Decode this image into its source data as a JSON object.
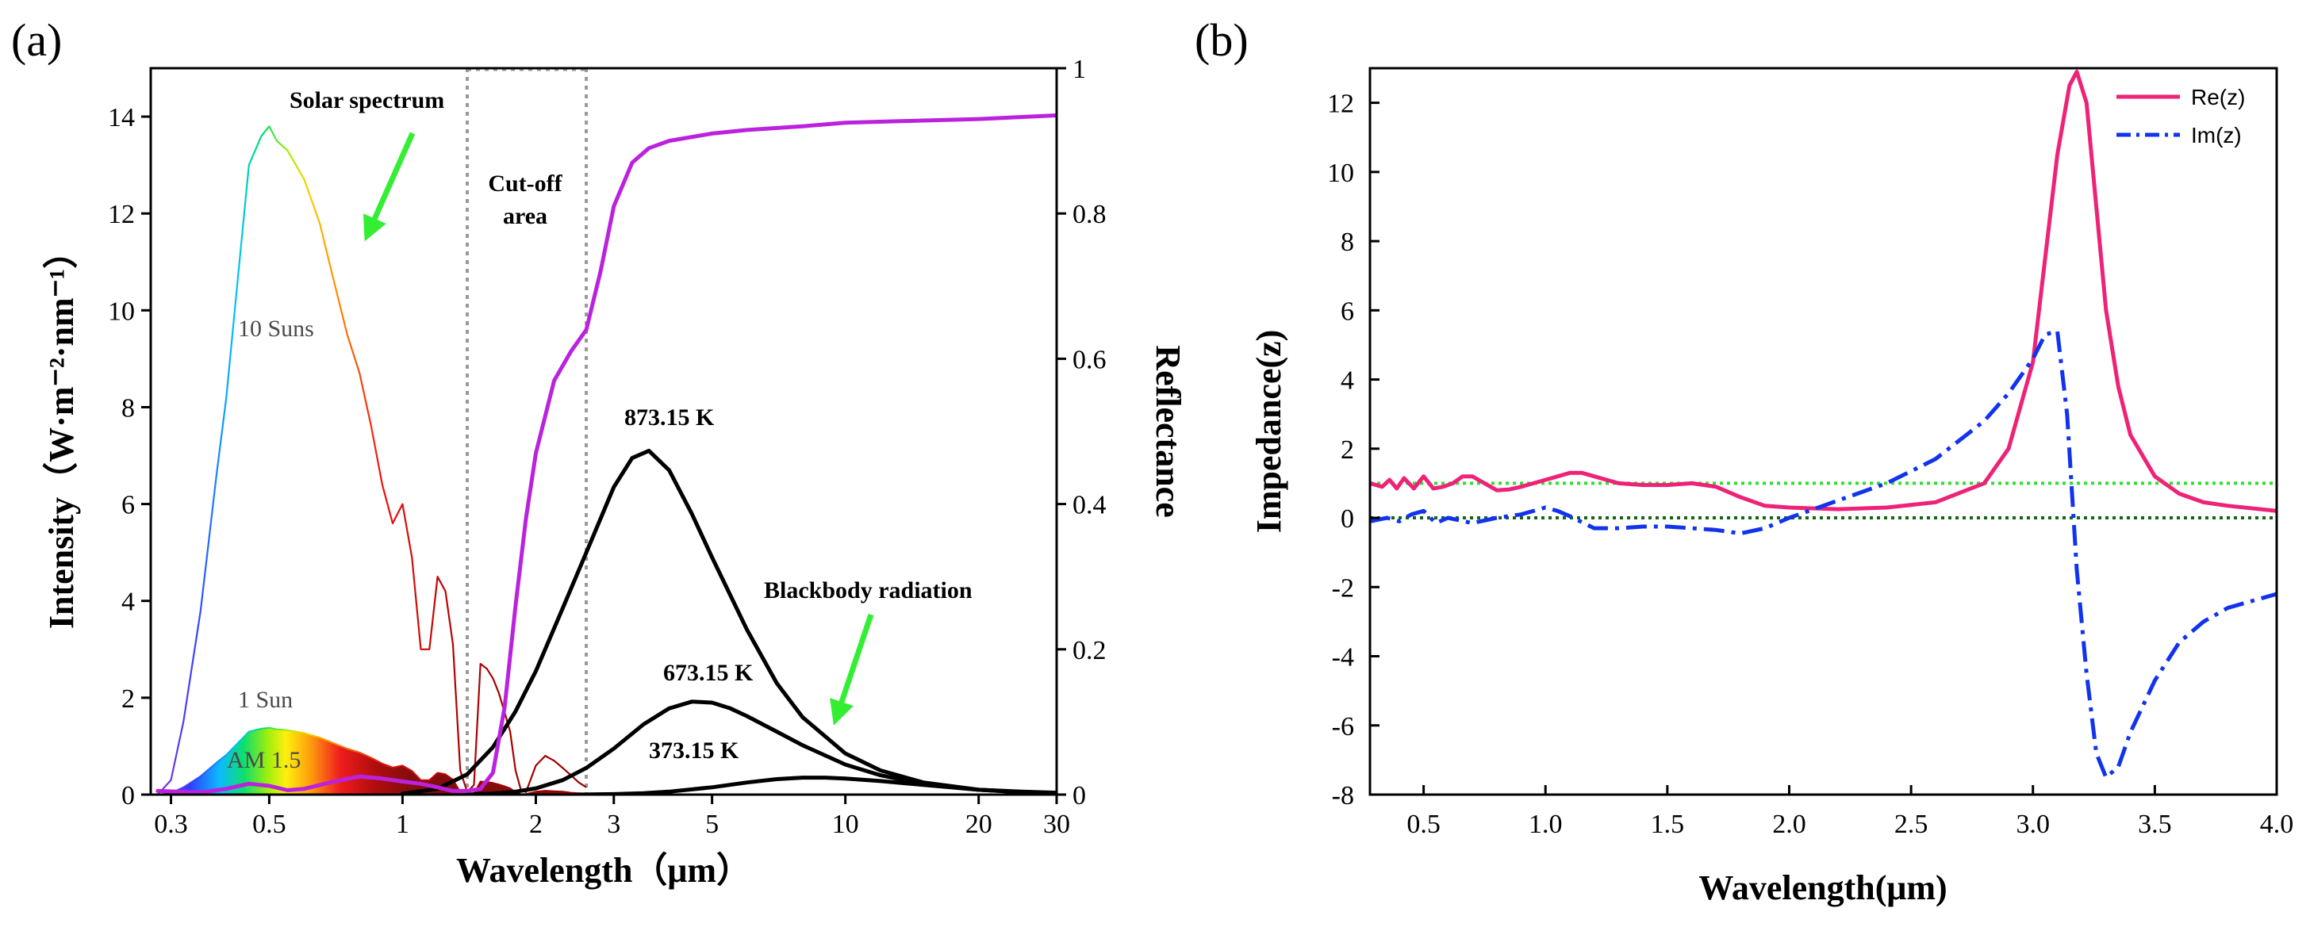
{
  "chart_data": [
    {
      "panel": "(a)",
      "type": "line",
      "xscale": "log",
      "xlabel": "Wavelength（μm）",
      "ylabel": "Intensity（W·m⁻²·nm⁻¹）",
      "ylabel2": "Reflectance",
      "xlim": [
        0.27,
        30
      ],
      "ylim": [
        0,
        15
      ],
      "ylim2": [
        0,
        1
      ],
      "xticks": [
        0.3,
        0.5,
        1,
        2,
        3,
        5,
        10,
        20,
        30
      ],
      "xtick_labels": [
        "0.3",
        "0.5",
        "1",
        "2",
        "3",
        "5",
        "10",
        "20",
        "30"
      ],
      "yticks": [
        0,
        2,
        4,
        6,
        8,
        10,
        12,
        14
      ],
      "yticks2": [
        0,
        0.2,
        0.4,
        0.6,
        0.8,
        1
      ],
      "ytick2_labels": [
        "0",
        "0.2",
        "0.4",
        "0.6",
        "0.8",
        "1"
      ],
      "cutoff_lines": [
        1.4,
        2.6
      ],
      "annotations": {
        "solar_spectrum": "Solar spectrum",
        "cutoff_line1": "Cut-off",
        "cutoff_line2": "area",
        "ten_suns": "10 Suns",
        "one_sun": "1 Sun",
        "am15": "AM 1.5",
        "blackbody": "Blackbody radiation",
        "t873": "873.15 K",
        "t673": "673.15 K",
        "t373": "373.15 K"
      },
      "arrow_color": "#33ee33",
      "series": [
        {
          "name": "10 Suns",
          "color": "spectral",
          "x": [
            0.28,
            0.3,
            0.32,
            0.35,
            0.38,
            0.4,
            0.42,
            0.45,
            0.48,
            0.5,
            0.52,
            0.55,
            0.6,
            0.65,
            0.7,
            0.75,
            0.8,
            0.85,
            0.9,
            0.95,
            1.0,
            1.05,
            1.1,
            1.15,
            1.2,
            1.25,
            1.3,
            1.35,
            1.4,
            1.45,
            1.5,
            1.55,
            1.6,
            1.65,
            1.7,
            1.75,
            1.8,
            1.85,
            1.9,
            2.0,
            2.1,
            2.2,
            2.3,
            2.4,
            2.5,
            2.6
          ],
          "y": [
            0,
            0.3,
            1.5,
            3.8,
            6.6,
            8.2,
            10.2,
            13.0,
            13.6,
            13.8,
            13.5,
            13.3,
            12.7,
            11.8,
            10.6,
            9.5,
            8.7,
            7.6,
            6.4,
            5.6,
            6.0,
            4.9,
            3.0,
            3.0,
            4.5,
            4.2,
            3.1,
            0.5,
            0.05,
            0.2,
            2.7,
            2.6,
            2.4,
            2.1,
            1.7,
            1.3,
            0.5,
            0.1,
            0.05,
            0.6,
            0.8,
            0.7,
            0.55,
            0.4,
            0.25,
            0.15
          ]
        },
        {
          "name": "AM 1.5 (1 Sun)",
          "color": "spectral",
          "x": [
            0.28,
            0.3,
            0.32,
            0.35,
            0.38,
            0.4,
            0.42,
            0.45,
            0.48,
            0.5,
            0.52,
            0.55,
            0.6,
            0.65,
            0.7,
            0.75,
            0.8,
            0.85,
            0.9,
            0.95,
            1.0,
            1.05,
            1.1,
            1.15,
            1.2,
            1.25,
            1.3,
            1.35,
            1.4,
            1.45,
            1.5,
            1.55,
            1.6,
            1.65,
            1.7,
            1.75,
            1.8,
            1.85,
            1.9,
            2.0,
            2.1,
            2.2,
            2.3,
            2.4,
            2.5,
            2.6
          ],
          "y": [
            0,
            0.03,
            0.15,
            0.38,
            0.66,
            0.82,
            1.02,
            1.3,
            1.36,
            1.38,
            1.35,
            1.33,
            1.27,
            1.18,
            1.06,
            0.95,
            0.87,
            0.76,
            0.64,
            0.56,
            0.6,
            0.49,
            0.3,
            0.3,
            0.45,
            0.42,
            0.31,
            0.05,
            0.01,
            0.02,
            0.27,
            0.26,
            0.24,
            0.21,
            0.17,
            0.13,
            0.05,
            0.01,
            0.01,
            0.06,
            0.08,
            0.07,
            0.06,
            0.04,
            0.03,
            0.02
          ]
        },
        {
          "name": "873.15 K",
          "color": "#000000",
          "x": [
            1.0,
            1.2,
            1.4,
            1.6,
            1.8,
            2.0,
            2.3,
            2.6,
            3.0,
            3.3,
            3.6,
            4.0,
            4.5,
            5.0,
            6.0,
            7.0,
            8.0,
            10.0,
            12.0,
            15.0,
            20.0,
            25.0,
            30.0
          ],
          "y": [
            0.02,
            0.12,
            0.42,
            0.98,
            1.72,
            2.55,
            3.85,
            5.0,
            6.35,
            6.95,
            7.1,
            6.7,
            5.8,
            4.9,
            3.4,
            2.3,
            1.6,
            0.85,
            0.5,
            0.25,
            0.1,
            0.05,
            0.03
          ]
        },
        {
          "name": "673.15 K",
          "color": "#000000",
          "x": [
            1.4,
            1.6,
            1.8,
            2.0,
            2.3,
            2.6,
            3.0,
            3.5,
            4.0,
            4.5,
            5.0,
            5.5,
            6.0,
            7.0,
            8.0,
            10.0,
            12.0,
            15.0,
            20.0,
            25.0,
            30.0
          ],
          "y": [
            0.0,
            0.02,
            0.06,
            0.13,
            0.3,
            0.55,
            0.95,
            1.45,
            1.78,
            1.92,
            1.9,
            1.78,
            1.62,
            1.3,
            1.02,
            0.62,
            0.4,
            0.22,
            0.1,
            0.05,
            0.03
          ]
        },
        {
          "name": "373.15 K",
          "color": "#000000",
          "x": [
            2.5,
            3.0,
            3.5,
            4.0,
            5.0,
            6.0,
            7.0,
            8.0,
            9.0,
            10.0,
            12.0,
            15.0,
            20.0,
            25.0,
            30.0
          ],
          "y": [
            0.0,
            0.01,
            0.03,
            0.06,
            0.15,
            0.25,
            0.32,
            0.35,
            0.35,
            0.33,
            0.28,
            0.2,
            0.1,
            0.06,
            0.04
          ]
        },
        {
          "name": "Reflectance",
          "axis": "right",
          "color": "#bb22dd",
          "x": [
            0.28,
            0.35,
            0.4,
            0.45,
            0.5,
            0.55,
            0.6,
            0.7,
            0.8,
            0.9,
            1.0,
            1.1,
            1.2,
            1.3,
            1.4,
            1.5,
            1.6,
            1.7,
            1.8,
            1.9,
            2.0,
            2.2,
            2.4,
            2.6,
            2.8,
            3.0,
            3.3,
            3.6,
            4.0,
            5.0,
            6.0,
            8.0,
            10.0,
            15.0,
            20.0,
            30.0
          ],
          "y": [
            0.005,
            0.003,
            0.008,
            0.015,
            0.012,
            0.006,
            0.008,
            0.018,
            0.025,
            0.022,
            0.018,
            0.015,
            0.01,
            0.005,
            0.005,
            0.008,
            0.03,
            0.12,
            0.26,
            0.38,
            0.47,
            0.57,
            0.61,
            0.64,
            0.72,
            0.81,
            0.87,
            0.89,
            0.9,
            0.91,
            0.915,
            0.92,
            0.925,
            0.928,
            0.93,
            0.935
          ]
        }
      ]
    },
    {
      "panel": "(b)",
      "type": "line",
      "xlabel": "Wavelength(μm)",
      "ylabel": "Impedance(z)",
      "xlim": [
        0.28,
        4.0
      ],
      "ylim": [
        -8,
        13
      ],
      "xticks": [
        0.5,
        1.0,
        1.5,
        2.0,
        2.5,
        3.0,
        3.5,
        4.0
      ],
      "xtick_labels": [
        "0.5",
        "1.0",
        "1.5",
        "2.0",
        "2.5",
        "3.0",
        "3.5",
        "4.0"
      ],
      "yticks": [
        -8,
        -6,
        -4,
        -2,
        0,
        2,
        4,
        6,
        8,
        10,
        12
      ],
      "ref_lines": [
        {
          "y": 1,
          "color": "#33dd33"
        },
        {
          "y": 0,
          "color": "#116611"
        }
      ],
      "series": [
        {
          "name": "Re(z)",
          "color": "#ee2277",
          "dash": "solid",
          "x": [
            0.28,
            0.33,
            0.36,
            0.39,
            0.42,
            0.46,
            0.5,
            0.54,
            0.58,
            0.62,
            0.66,
            0.7,
            0.75,
            0.8,
            0.85,
            0.9,
            1.0,
            1.1,
            1.15,
            1.2,
            1.3,
            1.4,
            1.5,
            1.6,
            1.7,
            1.8,
            1.9,
            2.0,
            2.2,
            2.4,
            2.6,
            2.8,
            2.9,
            3.0,
            3.05,
            3.1,
            3.15,
            3.18,
            3.22,
            3.26,
            3.3,
            3.35,
            3.4,
            3.5,
            3.6,
            3.7,
            3.8,
            4.0
          ],
          "y": [
            1.0,
            0.9,
            1.1,
            0.85,
            1.15,
            0.85,
            1.2,
            0.85,
            0.9,
            1.0,
            1.2,
            1.2,
            1.0,
            0.8,
            0.82,
            0.9,
            1.1,
            1.3,
            1.3,
            1.2,
            1.0,
            0.95,
            0.95,
            1.0,
            0.9,
            0.6,
            0.35,
            0.3,
            0.25,
            0.3,
            0.45,
            1.0,
            2.0,
            4.5,
            7.5,
            10.5,
            12.5,
            12.9,
            12.0,
            9.0,
            6.0,
            3.8,
            2.4,
            1.2,
            0.7,
            0.45,
            0.35,
            0.2
          ]
        },
        {
          "name": "Im(z)",
          "color": "#1133ee",
          "dash": "dashdot",
          "x": [
            0.28,
            0.35,
            0.4,
            0.45,
            0.5,
            0.55,
            0.6,
            0.7,
            0.8,
            0.9,
            1.0,
            1.05,
            1.1,
            1.2,
            1.3,
            1.4,
            1.5,
            1.6,
            1.7,
            1.8,
            1.9,
            2.0,
            2.2,
            2.4,
            2.6,
            2.8,
            2.9,
            3.0,
            3.05,
            3.1,
            3.14,
            3.18,
            3.22,
            3.26,
            3.3,
            3.35,
            3.4,
            3.5,
            3.6,
            3.7,
            3.8,
            4.0
          ],
          "y": [
            -0.1,
            0.0,
            -0.1,
            0.1,
            0.2,
            -0.15,
            0.0,
            -0.15,
            0.0,
            0.1,
            0.3,
            0.2,
            0.05,
            -0.3,
            -0.3,
            -0.25,
            -0.25,
            -0.3,
            -0.35,
            -0.45,
            -0.3,
            0.0,
            0.5,
            1.0,
            1.7,
            2.8,
            3.6,
            4.6,
            5.3,
            5.4,
            3.0,
            -1.5,
            -4.5,
            -6.8,
            -7.5,
            -7.2,
            -6.2,
            -4.7,
            -3.6,
            -3.0,
            -2.6,
            -2.2
          ]
        }
      ]
    }
  ]
}
